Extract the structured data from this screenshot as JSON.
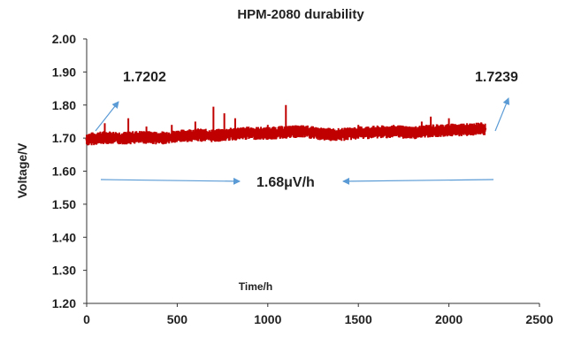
{
  "chart_data": {
    "type": "line",
    "title": "HPM-2080 durability",
    "xlabel": "Time/h",
    "ylabel": "Voltage/V",
    "xlim": [
      0,
      2500
    ],
    "ylim": [
      1.2,
      2.0
    ],
    "x_ticks": [
      "0",
      "500",
      "1000",
      "1500",
      "2000",
      "2500"
    ],
    "y_ticks": [
      "1.20",
      "1.30",
      "1.40",
      "1.50",
      "1.60",
      "1.70",
      "1.80",
      "1.90",
      "2.00"
    ],
    "grid": false,
    "series": [
      {
        "color": "#c00000",
        "x": [
          0,
          100,
          200,
          300,
          400,
          500,
          600,
          700,
          800,
          900,
          1000,
          1100,
          1200,
          1300,
          1400,
          1500,
          1600,
          1700,
          1800,
          1900,
          2000,
          2100,
          2200
        ],
        "y": [
          1.696,
          1.702,
          1.7,
          1.703,
          1.7,
          1.705,
          1.71,
          1.707,
          1.712,
          1.715,
          1.714,
          1.718,
          1.72,
          1.712,
          1.71,
          1.716,
          1.718,
          1.72,
          1.716,
          1.722,
          1.724,
          1.726,
          1.728
        ]
      }
    ],
    "spikes": [
      {
        "x": 100,
        "y": 1.745
      },
      {
        "x": 230,
        "y": 1.76
      },
      {
        "x": 330,
        "y": 1.735
      },
      {
        "x": 470,
        "y": 1.74
      },
      {
        "x": 600,
        "y": 1.75
      },
      {
        "x": 700,
        "y": 1.795
      },
      {
        "x": 760,
        "y": 1.775
      },
      {
        "x": 820,
        "y": 1.76
      },
      {
        "x": 1000,
        "y": 1.74
      },
      {
        "x": 1100,
        "y": 1.8
      },
      {
        "x": 1250,
        "y": 1.735
      },
      {
        "x": 1500,
        "y": 1.74
      },
      {
        "x": 1850,
        "y": 1.75
      },
      {
        "x": 1900,
        "y": 1.765
      },
      {
        "x": 2000,
        "y": 1.76
      },
      {
        "x": 2100,
        "y": 1.745
      }
    ],
    "annotations": {
      "start_value": "1.7202",
      "end_value": "1.7239",
      "rate": "1.68μV/h"
    },
    "annotation_color": "#5b9bd5"
  }
}
